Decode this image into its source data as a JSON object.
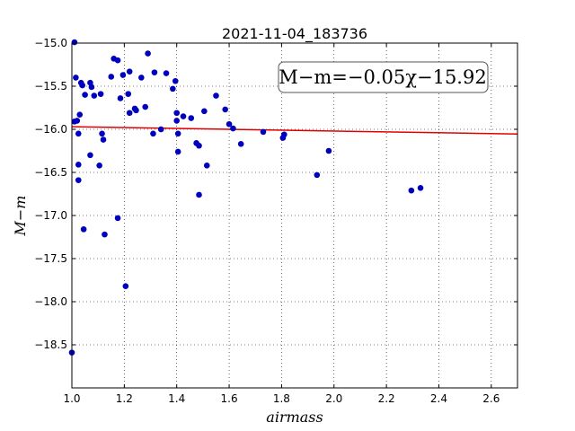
{
  "chart_data": {
    "type": "scatter",
    "title": "2021-11-04_183736",
    "xlabel": "airmass",
    "ylabel": "M−m",
    "xlim": [
      1.0,
      2.7
    ],
    "ylim": [
      -15.0,
      -19.0
    ],
    "y_inverted": true,
    "x_ticks": [
      "1.0",
      "1.2",
      "1.4",
      "1.6",
      "1.8",
      "2.0",
      "2.2",
      "2.4",
      "2.6"
    ],
    "x_tick_values": [
      1.0,
      1.2,
      1.4,
      1.6,
      1.8,
      2.0,
      2.2,
      2.4,
      2.6
    ],
    "y_ticks": [
      "−15.0",
      "−15.5",
      "−16.0",
      "−16.5",
      "−17.0",
      "−17.5",
      "−18.0",
      "−18.5"
    ],
    "y_tick_values": [
      -15.0,
      -15.5,
      -16.0,
      -16.5,
      -17.0,
      -17.5,
      -18.0,
      -18.5
    ],
    "grid": true,
    "annotation": "M−m=−0.05χ−15.92",
    "points_color": "#0000bf",
    "fit_color": "#e00000",
    "fit": {
      "slope": -0.05,
      "intercept": -15.92
    },
    "points": [
      [
        1.0,
        -18.59
      ],
      [
        1.01,
        -14.99
      ],
      [
        1.01,
        -15.91
      ],
      [
        1.015,
        -15.4
      ],
      [
        1.02,
        -15.9
      ],
      [
        1.025,
        -16.05
      ],
      [
        1.025,
        -16.41
      ],
      [
        1.025,
        -16.59
      ],
      [
        1.03,
        -15.83
      ],
      [
        1.035,
        -15.46
      ],
      [
        1.04,
        -15.49
      ],
      [
        1.045,
        -17.16
      ],
      [
        1.05,
        -15.6
      ],
      [
        1.07,
        -16.3
      ],
      [
        1.07,
        -15.46
      ],
      [
        1.075,
        -15.51
      ],
      [
        1.085,
        -15.61
      ],
      [
        1.105,
        -16.42
      ],
      [
        1.11,
        -15.59
      ],
      [
        1.115,
        -16.05
      ],
      [
        1.12,
        -16.12
      ],
      [
        1.125,
        -17.22
      ],
      [
        1.15,
        -15.39
      ],
      [
        1.16,
        -15.18
      ],
      [
        1.175,
        -15.2
      ],
      [
        1.175,
        -17.03
      ],
      [
        1.185,
        -15.64
      ],
      [
        1.195,
        -15.37
      ],
      [
        1.205,
        -17.82
      ],
      [
        1.215,
        -15.59
      ],
      [
        1.22,
        -15.33
      ],
      [
        1.22,
        -15.81
      ],
      [
        1.24,
        -15.76
      ],
      [
        1.245,
        -15.78
      ],
      [
        1.265,
        -15.4
      ],
      [
        1.28,
        -15.74
      ],
      [
        1.29,
        -15.12
      ],
      [
        1.31,
        -16.05
      ],
      [
        1.315,
        -15.34
      ],
      [
        1.34,
        -16.0
      ],
      [
        1.36,
        -15.35
      ],
      [
        1.385,
        -15.53
      ],
      [
        1.395,
        -15.44
      ],
      [
        1.4,
        -15.9
      ],
      [
        1.4,
        -15.81
      ],
      [
        1.405,
        -16.26
      ],
      [
        1.405,
        -16.05
      ],
      [
        1.425,
        -15.85
      ],
      [
        1.455,
        -15.87
      ],
      [
        1.475,
        -16.16
      ],
      [
        1.485,
        -16.19
      ],
      [
        1.485,
        -16.76
      ],
      [
        1.505,
        -15.79
      ],
      [
        1.515,
        -16.42
      ],
      [
        1.55,
        -15.61
      ],
      [
        1.585,
        -15.77
      ],
      [
        1.6,
        -15.94
      ],
      [
        1.615,
        -15.99
      ],
      [
        1.645,
        -16.17
      ],
      [
        1.73,
        -16.03
      ],
      [
        1.805,
        -16.1
      ],
      [
        1.81,
        -16.06
      ],
      [
        1.935,
        -16.53
      ],
      [
        1.98,
        -16.25
      ],
      [
        2.295,
        -16.71
      ],
      [
        2.33,
        -16.68
      ]
    ]
  }
}
